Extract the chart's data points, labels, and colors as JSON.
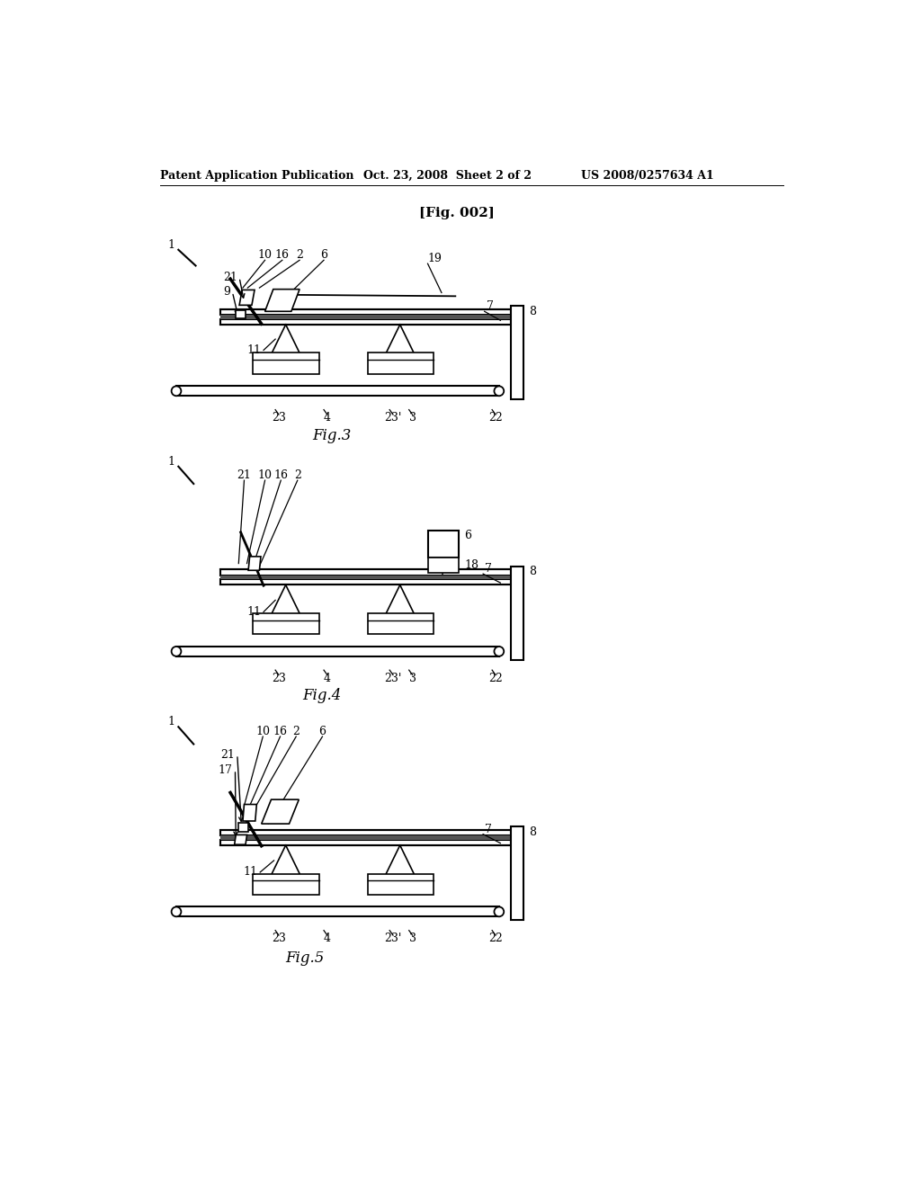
{
  "background_color": "#ffffff",
  "header_left": "Patent Application Publication",
  "header_center": "Oct. 23, 2008  Sheet 2 of 2",
  "header_right": "US 2008/0257634 A1",
  "fig_label": "[Fig. 002]",
  "fig3_label": "Fig.3",
  "fig4_label": "Fig.4",
  "fig5_label": "Fig.5"
}
